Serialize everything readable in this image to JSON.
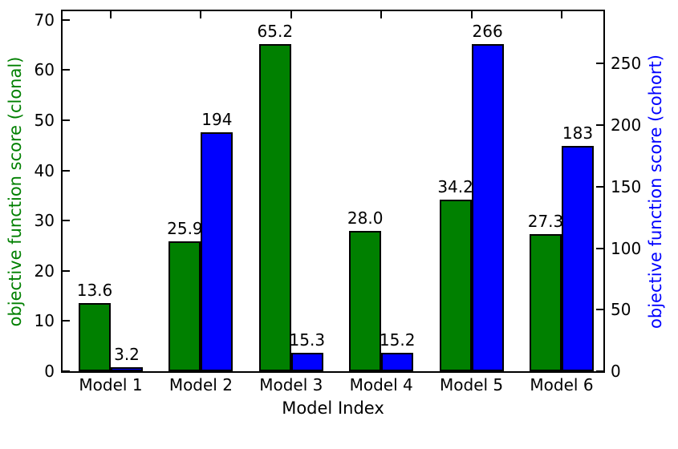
{
  "chart_data": {
    "type": "bar",
    "title": "",
    "xlabel": "Model Index",
    "categories": [
      "Model 1",
      "Model 2",
      "Model 3",
      "Model 4",
      "Model 5",
      "Model 6"
    ],
    "series": [
      {
        "name": "objective function score (clonal)",
        "axis": "left",
        "color": "#008000",
        "values": [
          13.6,
          25.9,
          65.2,
          28.0,
          34.2,
          27.3
        ],
        "labels": [
          "13.6",
          "25.9",
          "65.2",
          "28.0",
          "34.2",
          "27.3"
        ]
      },
      {
        "name": "objective function score (cohort)",
        "axis": "right",
        "color": "#0000ff",
        "values": [
          3.2,
          194,
          15.3,
          15.2,
          266,
          183
        ],
        "labels": [
          "3.2",
          "194",
          "15.3",
          "15.2",
          "266",
          "183"
        ]
      }
    ],
    "axes": {
      "left": {
        "label": "objective function score (clonal)",
        "color": "#008000",
        "ticks": [
          0,
          10,
          20,
          30,
          40,
          50,
          60,
          70
        ],
        "lim": [
          0,
          71.7
        ]
      },
      "right": {
        "label": "objective function score (cohort)",
        "color": "#0000ff",
        "ticks": [
          0,
          50,
          100,
          150,
          200,
          250
        ],
        "lim": [
          0,
          292.6
        ]
      }
    },
    "grid": false,
    "legend": "none",
    "bar_edge_color": "#000000",
    "spine_color": "#000000",
    "text_color": "#000000"
  }
}
